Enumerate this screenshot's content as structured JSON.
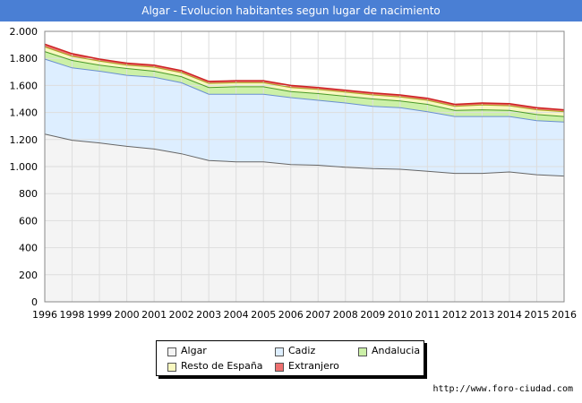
{
  "title": "Algar - Evolucion habitantes segun lugar de nacimiento",
  "watermark": "http://www.foro-ciudad.com",
  "chart_data": {
    "type": "area",
    "stacked": true,
    "x": [
      1996,
      1998,
      1999,
      2000,
      2001,
      2002,
      2003,
      2004,
      2005,
      2006,
      2007,
      2008,
      2009,
      2010,
      2011,
      2012,
      2013,
      2014,
      2015,
      2016
    ],
    "x_tick_labels": [
      "1996",
      "1998",
      "1999",
      "2000",
      "2001",
      "2002",
      "2003",
      "2004",
      "2005",
      "2006",
      "2007",
      "2008",
      "2009",
      "2010",
      "2011",
      "2012",
      "2013",
      "2014",
      "2015",
      "2016"
    ],
    "ylim": [
      0,
      2000
    ],
    "y_ticks": [
      0,
      200,
      400,
      600,
      800,
      1000,
      1200,
      1400,
      1600,
      1800,
      2000
    ],
    "y_tick_labels": [
      "0",
      "200",
      "400",
      "600",
      "800",
      "1.000",
      "1.200",
      "1.400",
      "1.600",
      "1.800",
      "2.000"
    ],
    "grid": true,
    "legend_position": "bottom-center",
    "series": [
      {
        "name": "Algar",
        "color": "#f4f4f4",
        "values": [
          1240,
          1195,
          1175,
          1150,
          1130,
          1095,
          1045,
          1035,
          1035,
          1015,
          1010,
          995,
          985,
          980,
          965,
          950,
          950,
          960,
          940,
          930
        ]
      },
      {
        "name": "Cadiz",
        "color": "#ddeeff",
        "values": [
          555,
          535,
          530,
          525,
          530,
          525,
          490,
          500,
          500,
          495,
          480,
          475,
          460,
          455,
          440,
          420,
          420,
          410,
          400,
          400
        ]
      },
      {
        "name": "Andalucia",
        "color": "#ccf0a8",
        "values": [
          55,
          55,
          45,
          50,
          45,
          45,
          50,
          55,
          55,
          45,
          50,
          50,
          55,
          50,
          55,
          45,
          50,
          45,
          45,
          40
        ]
      },
      {
        "name": "Resto de España",
        "color": "#f8f8c0",
        "values": [
          35,
          30,
          30,
          25,
          30,
          30,
          30,
          30,
          30,
          30,
          30,
          30,
          30,
          30,
          30,
          30,
          35,
          35,
          35,
          35
        ]
      },
      {
        "name": "Extranjero",
        "color": "#ee7070",
        "values": [
          20,
          20,
          15,
          15,
          15,
          15,
          15,
          15,
          15,
          15,
          15,
          15,
          15,
          15,
          15,
          15,
          15,
          15,
          15,
          15
        ]
      }
    ]
  }
}
